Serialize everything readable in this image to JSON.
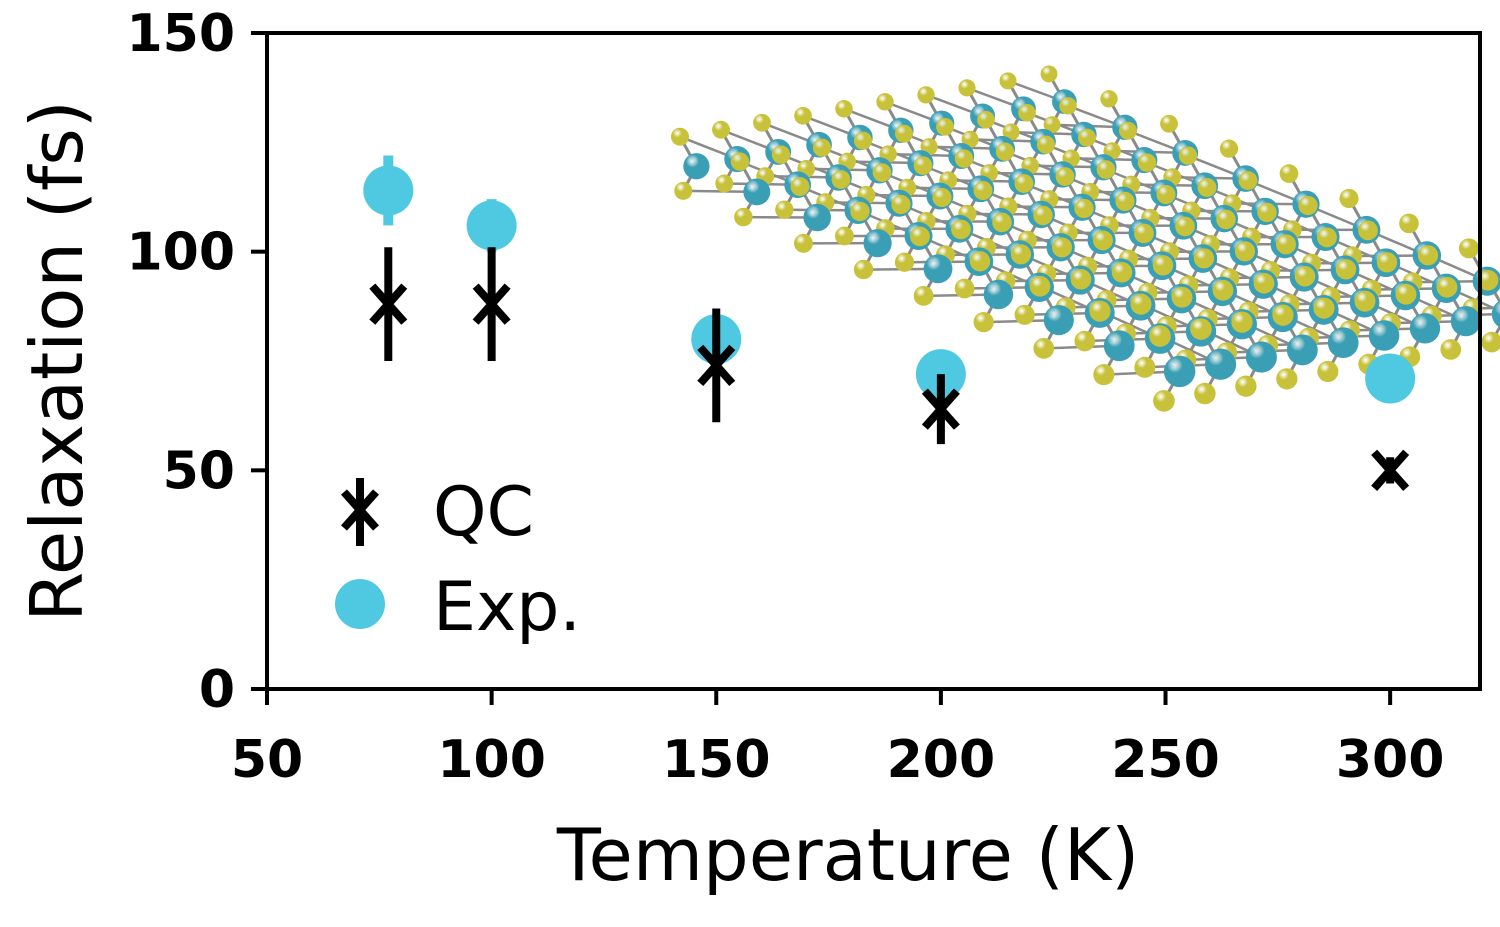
{
  "chart_data": {
    "type": "scatter",
    "xlabel": "Temperature (K)",
    "ylabel": "Relaxation (fs)",
    "xlim": [
      50,
      320
    ],
    "ylim": [
      0,
      150
    ],
    "xticks": [
      "50",
      "100",
      "150",
      "200",
      "250",
      "300"
    ],
    "yticks": [
      "0",
      "50",
      "100",
      "150"
    ],
    "grid": false,
    "legend_position": "bottom-left",
    "series": [
      {
        "name": "QC",
        "marker": "asterisk",
        "color": "#000000",
        "points": [
          {
            "x": 77,
            "y": 88,
            "err": 13
          },
          {
            "x": 100,
            "y": 88,
            "err": 13
          },
          {
            "x": 150,
            "y": 74,
            "err": 13
          },
          {
            "x": 200,
            "y": 64,
            "err": 8
          },
          {
            "x": 300,
            "y": 50,
            "err": 3
          }
        ]
      },
      {
        "name": "Exp.",
        "marker": "circle",
        "color": "#4ec9e1",
        "points": [
          {
            "x": 77,
            "y": 114,
            "err": 8
          },
          {
            "x": 100,
            "y": 106,
            "err": 6
          },
          {
            "x": 150,
            "y": 80,
            "err": 3
          },
          {
            "x": 200,
            "y": 72,
            "err": 5
          },
          {
            "x": 300,
            "y": 71,
            "err": 4
          }
        ]
      }
    ],
    "inset": {
      "name": "crystal lattice illustration",
      "atom_colors": [
        "#c8c23a",
        "#3a9fb5"
      ],
      "bond_color": "#8a8a8a"
    }
  }
}
